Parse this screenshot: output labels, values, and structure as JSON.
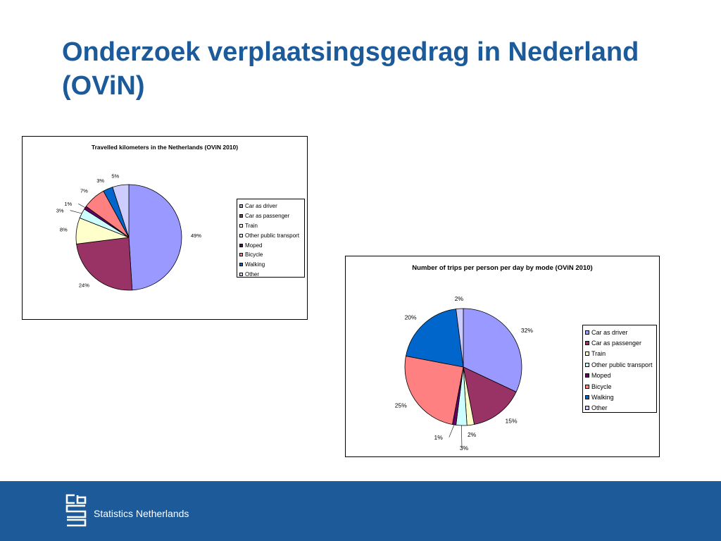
{
  "slide": {
    "title": "Onderzoek verplaatsingsgedrag in Nederland (OViN)"
  },
  "colors": {
    "title": "#1c5a9a",
    "footer": "#1c5a9a",
    "footer_text": "#ffffff"
  },
  "footer": {
    "org_name": "Statistics Netherlands",
    "logo_text": "cbs"
  },
  "chart_data": [
    {
      "type": "pie",
      "title": "Travelled kilometers in the Netherlands (OViN 2010)",
      "categories": [
        "Car as driver",
        "Car as passenger",
        "Train",
        "Other public transport",
        "Moped",
        "Bicycle",
        "Walking",
        "Other"
      ],
      "values": [
        49,
        24,
        8,
        3,
        1,
        7,
        3,
        5
      ],
      "labels": [
        "49%",
        "24%",
        "8%",
        "3%",
        "1%",
        "7%",
        "3%",
        "5%"
      ],
      "colors": [
        "#9999ff",
        "#993366",
        "#ffffcc",
        "#ccffff",
        "#660066",
        "#ff8080",
        "#0066cc",
        "#ccccff"
      ],
      "legend_position": "right"
    },
    {
      "type": "pie",
      "title": "Number of trips per person per day by mode (OViN 2010)",
      "categories": [
        "Car as driver",
        "Car as passenger",
        "Train",
        "Other public transport",
        "Moped",
        "Bicycle",
        "Walking",
        "Other"
      ],
      "values": [
        32,
        15,
        2,
        3,
        1,
        25,
        20,
        2
      ],
      "labels": [
        "32%",
        "15%",
        "2%",
        "3%",
        "1%",
        "25%",
        "20%",
        "2%"
      ],
      "colors": [
        "#9999ff",
        "#993366",
        "#ffffcc",
        "#ccffff",
        "#660066",
        "#ff8080",
        "#0066cc",
        "#ccccff"
      ],
      "legend_position": "right"
    }
  ]
}
